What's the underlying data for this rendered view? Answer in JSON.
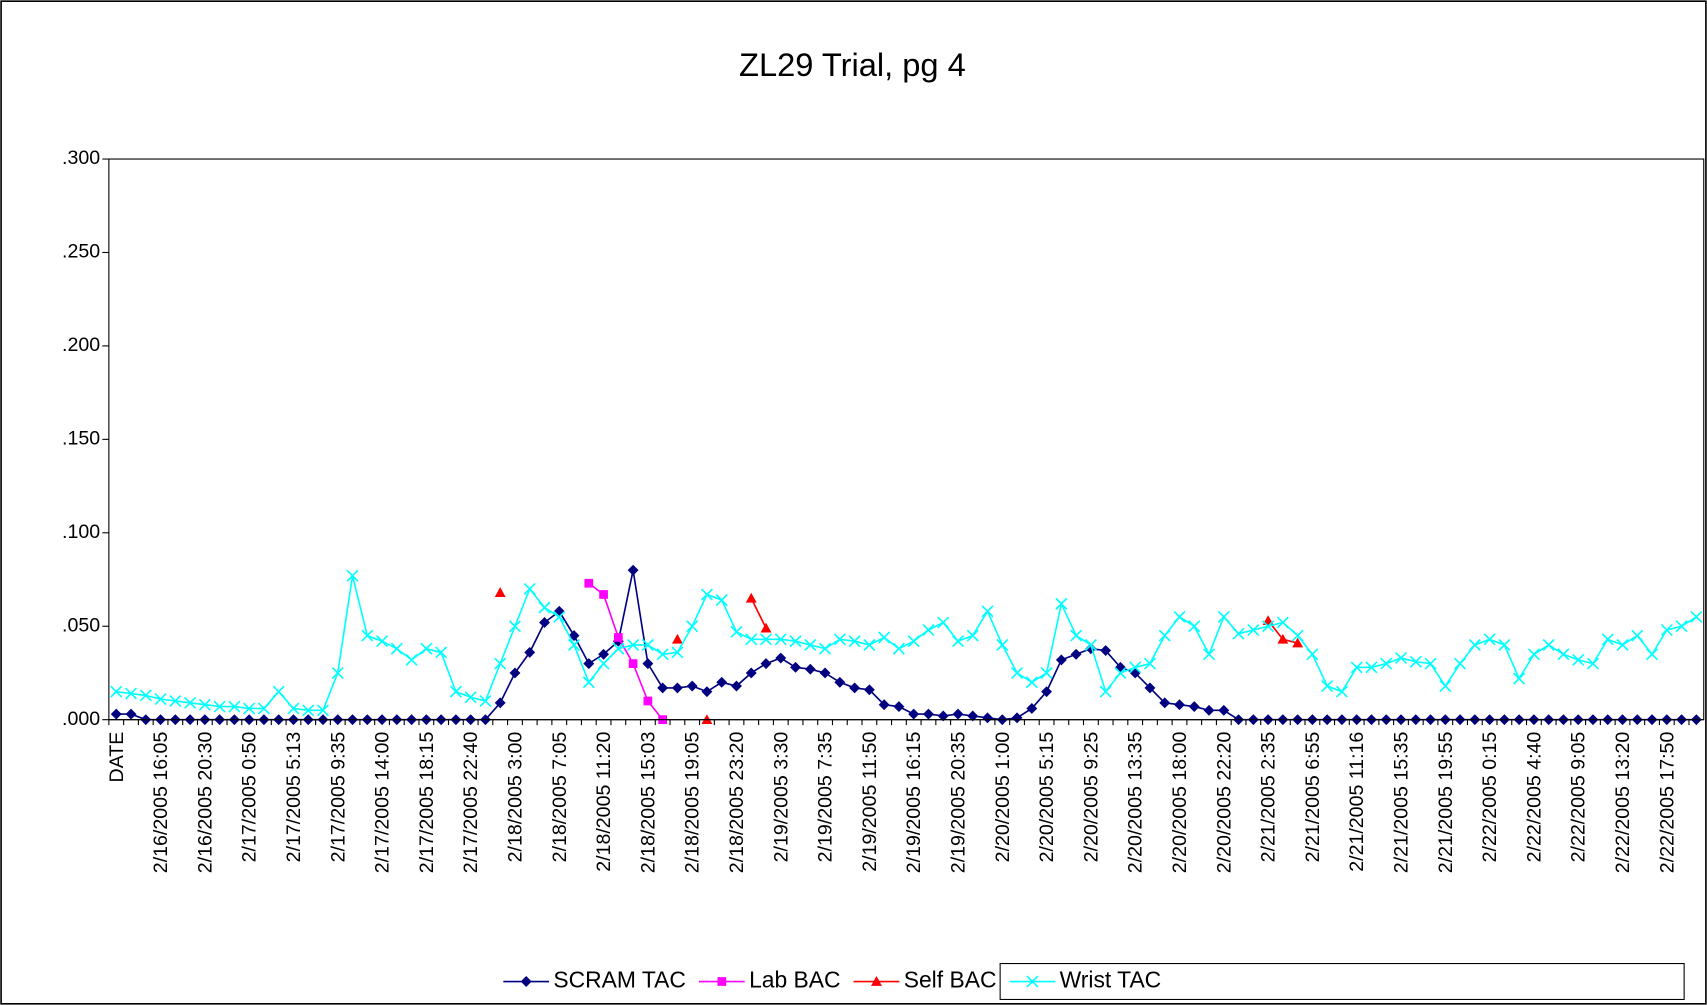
{
  "chart_data": {
    "type": "line",
    "title": "ZL29 Trial, pg 4",
    "categories": [
      "DATE",
      null,
      null,
      "2/16/2005 16:05",
      null,
      null,
      "2/16/2005 20:30",
      null,
      null,
      "2/17/2005 0:50",
      null,
      null,
      "2/17/2005 5:13",
      null,
      null,
      "2/17/2005 9:35",
      null,
      null,
      "2/17/2005 14:00",
      null,
      null,
      "2/17/2005 18:15",
      null,
      null,
      "2/17/2005 22:40",
      null,
      null,
      "2/18/2005 3:00",
      null,
      null,
      "2/18/2005 7:05",
      null,
      null,
      "2/18/2005 11:20",
      null,
      null,
      "2/18/2005 15:03",
      null,
      null,
      "2/18/2005 19:05",
      null,
      null,
      "2/18/2005 23:20",
      null,
      null,
      "2/19/2005 3:30",
      null,
      null,
      "2/19/2005 7:35",
      null,
      null,
      "2/19/2005 11:50",
      null,
      null,
      "2/19/2005 16:15",
      null,
      null,
      "2/19/2005 20:35",
      null,
      null,
      "2/20/2005 1:00",
      null,
      null,
      "2/20/2005 5:15",
      null,
      null,
      "2/20/2005 9:25",
      null,
      null,
      "2/20/2005 13:35",
      null,
      null,
      "2/20/2005 18:00",
      null,
      null,
      "2/20/2005 22:20",
      null,
      null,
      "2/21/2005 2:35",
      null,
      null,
      "2/21/2005 6:55",
      null,
      null,
      "2/21/2005 11:16",
      null,
      null,
      "2/21/2005 15:35",
      null,
      null,
      "2/21/2005 19:55",
      null,
      null,
      "2/22/2005 0:15",
      null,
      null,
      "2/22/2005 4:40",
      null,
      null,
      "2/22/2005 9:05",
      null,
      null,
      "2/22/2005 13:20",
      null,
      null,
      "2/22/2005 17:50",
      null,
      null
    ],
    "series": [
      {
        "name": "SCRAM TAC",
        "color": "#000080",
        "marker": "diamond",
        "values": [
          0.003,
          0.003,
          0,
          0,
          0,
          0,
          0,
          0,
          0,
          0,
          0,
          0,
          0,
          0,
          0,
          0,
          0,
          0,
          0,
          0,
          0,
          0,
          0,
          0,
          0,
          0,
          0.009,
          0.025,
          0.036,
          0.052,
          0.058,
          0.045,
          0.03,
          0.035,
          0.042,
          0.08,
          0.03,
          0.017,
          0.017,
          0.018,
          0.015,
          0.02,
          0.018,
          0.025,
          0.03,
          0.033,
          0.028,
          0.027,
          0.025,
          0.02,
          0.017,
          0.016,
          0.008,
          0.007,
          0.003,
          0.003,
          0.002,
          0.003,
          0.002,
          0.001,
          0,
          0.001,
          0.006,
          0.015,
          0.032,
          0.035,
          0.038,
          0.037,
          0.028,
          0.025,
          0.017,
          0.009,
          0.008,
          0.007,
          0.005,
          0.005,
          0,
          0,
          0,
          0,
          0,
          0,
          0,
          0,
          0,
          0,
          0,
          0,
          0,
          0,
          0,
          0,
          0,
          0,
          0,
          0,
          0,
          0,
          0,
          0,
          0,
          0,
          0,
          0,
          0,
          0,
          0,
          0
        ]
      },
      {
        "name": "Lab BAC",
        "color": "#ff00ff",
        "marker": "square",
        "values": [
          null,
          null,
          null,
          null,
          null,
          null,
          null,
          null,
          null,
          null,
          null,
          null,
          null,
          null,
          null,
          null,
          null,
          null,
          null,
          null,
          null,
          null,
          null,
          null,
          null,
          null,
          null,
          null,
          null,
          null,
          null,
          null,
          0.073,
          0.067,
          0.044,
          0.03,
          0.01,
          0,
          null,
          null,
          null,
          null,
          null,
          null,
          null,
          null,
          null,
          null,
          null,
          null,
          null,
          null,
          null,
          null,
          null,
          null,
          null,
          null,
          null,
          null,
          null,
          null,
          null,
          null,
          null,
          null,
          null,
          null,
          null,
          null,
          null,
          null,
          null,
          null,
          null,
          null,
          null,
          null,
          null,
          null,
          null,
          null,
          null,
          null,
          null,
          null,
          null,
          null,
          null,
          null,
          null,
          null,
          null,
          null,
          null,
          null,
          null,
          null,
          null,
          null,
          null,
          null,
          null,
          null,
          null,
          null,
          null,
          null
        ]
      },
      {
        "name": "Self BAC",
        "color": "#ff0000",
        "marker": "triangle",
        "values": [
          null,
          null,
          null,
          null,
          null,
          null,
          null,
          null,
          null,
          null,
          null,
          null,
          null,
          null,
          null,
          null,
          null,
          null,
          null,
          null,
          null,
          null,
          null,
          null,
          null,
          null,
          0.068,
          null,
          null,
          null,
          null,
          null,
          null,
          null,
          null,
          null,
          null,
          null,
          0.043,
          null,
          0,
          null,
          null,
          0.065,
          0.049,
          null,
          null,
          null,
          null,
          null,
          null,
          null,
          null,
          null,
          null,
          null,
          null,
          null,
          null,
          null,
          null,
          null,
          null,
          null,
          null,
          null,
          null,
          null,
          null,
          null,
          null,
          null,
          null,
          null,
          null,
          null,
          null,
          null,
          0.053,
          0.043,
          0.041,
          null,
          null,
          null,
          null,
          null,
          null,
          null,
          null,
          null,
          null,
          null,
          null,
          null,
          null,
          null,
          null,
          null,
          null,
          null,
          null,
          null,
          null,
          null,
          null,
          null,
          null,
          null
        ]
      },
      {
        "name": "Wrist TAC",
        "color": "#00ffff",
        "marker": "x",
        "values": [
          0.015,
          0.014,
          0.013,
          0.011,
          0.01,
          0.009,
          0.008,
          0.007,
          0.007,
          0.006,
          0.006,
          0.015,
          0.006,
          0.005,
          0.005,
          0.025,
          0.077,
          0.045,
          0.042,
          0.038,
          0.032,
          0.038,
          0.036,
          0.015,
          0.012,
          0.01,
          0.03,
          0.05,
          0.07,
          0.06,
          0.055,
          0.04,
          0.02,
          0.03,
          0.038,
          0.04,
          0.04,
          0.035,
          0.036,
          0.05,
          0.067,
          0.064,
          0.047,
          0.043,
          0.043,
          0.043,
          0.042,
          0.04,
          0.038,
          0.043,
          0.042,
          0.04,
          0.044,
          0.038,
          0.042,
          0.048,
          0.052,
          0.042,
          0.045,
          0.058,
          0.04,
          0.025,
          0.02,
          0.025,
          0.062,
          0.045,
          0.04,
          0.015,
          0.025,
          0.028,
          0.03,
          0.045,
          0.055,
          0.05,
          0.035,
          0.055,
          0.046,
          0.048,
          0.05,
          0.052,
          0.045,
          0.035,
          0.018,
          0.015,
          0.028,
          0.028,
          0.03,
          0.033,
          0.031,
          0.03,
          0.018,
          0.03,
          0.04,
          0.043,
          0.04,
          0.022,
          0.035,
          0.04,
          0.035,
          0.032,
          0.03,
          0.043,
          0.04,
          0.045,
          0.035,
          0.048,
          0.05,
          0.055
        ]
      }
    ],
    "ylim": [
      0,
      0.3
    ],
    "yticks": [
      {
        "value": 0,
        "label": ".000"
      },
      {
        "value": 0.05,
        "label": ".050"
      },
      {
        "value": 0.1,
        "label": ".100"
      },
      {
        "value": 0.15,
        "label": ".150"
      },
      {
        "value": 0.2,
        "label": ".200"
      },
      {
        "value": 0.25,
        "label": ".250"
      },
      {
        "value": 0.3,
        "label": ".300"
      }
    ],
    "grid": false,
    "legend": "bottom"
  }
}
